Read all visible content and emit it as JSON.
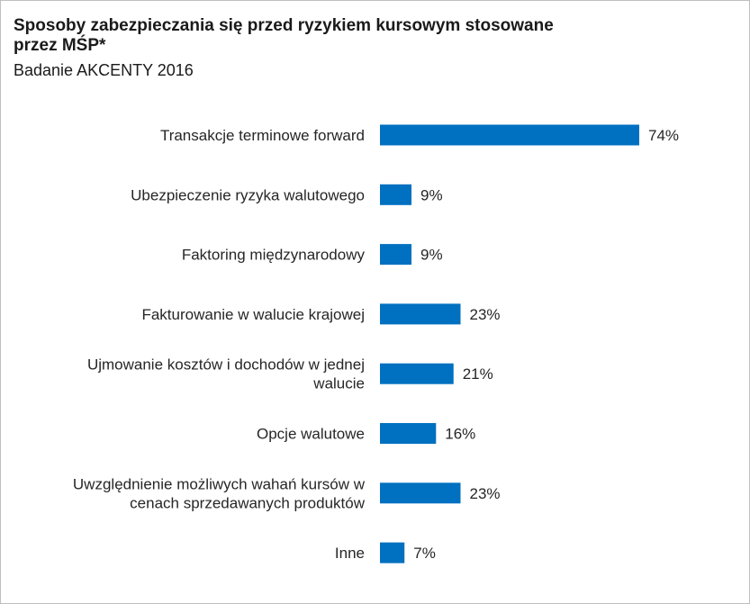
{
  "chart_data": {
    "type": "bar",
    "orientation": "horizontal",
    "title": "Sposoby zabezpieczania się przed ryzykiem kursowym stosowane przez MŚP*",
    "subtitle": "Badanie AKCENTY 2016",
    "categories": [
      [
        "Transakcje terminowe forward"
      ],
      [
        "Ubezpieczenie ryzyka walutowego"
      ],
      [
        "Faktoring międzynarodowy"
      ],
      [
        "Fakturowanie w walucie krajowej"
      ],
      [
        "Ujmowanie kosztów i dochodów w jednej",
        "walucie"
      ],
      [
        "Opcje walutowe"
      ],
      [
        "Uwzględnienie możliwych wahań kursów w",
        "cenach sprzedawanych produktów"
      ],
      [
        "Inne"
      ]
    ],
    "values": [
      74,
      9,
      9,
      23,
      21,
      16,
      23,
      7
    ],
    "value_labels": [
      "74%",
      "9%",
      "9%",
      "23%",
      "21%",
      "16%",
      "23%",
      "7%"
    ],
    "unit": "%",
    "bar_color": "#0070c0",
    "grid": false,
    "legend": "none",
    "xlim": [
      0,
      100
    ]
  }
}
